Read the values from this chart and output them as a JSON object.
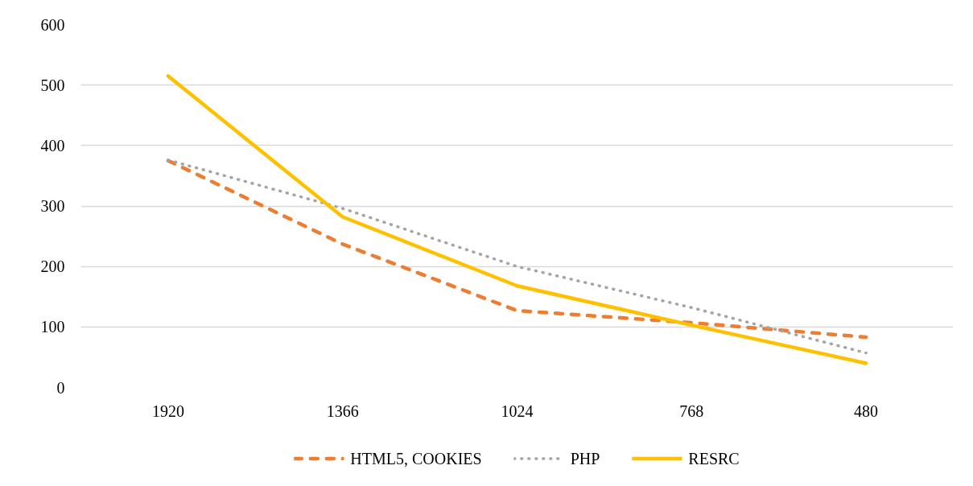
{
  "chart_data": {
    "type": "line",
    "categories": [
      "1920",
      "1366",
      "1024",
      "768",
      "480"
    ],
    "series": [
      {
        "name": "HTML5, COOKIES",
        "color": "#ed7d31",
        "line_style": "dashed",
        "values": [
          375,
          237,
          127,
          107,
          83
        ]
      },
      {
        "name": "PHP",
        "color": "#a5a5a5",
        "line_style": "dotted",
        "values": [
          376,
          296,
          200,
          132,
          57
        ]
      },
      {
        "name": "RESRC",
        "color": "#ffc000",
        "line_style": "solid",
        "values": [
          515,
          282,
          168,
          103,
          40
        ]
      }
    ],
    "ylim": [
      0,
      600
    ],
    "yticks": [
      0,
      100,
      200,
      300,
      400,
      500,
      600
    ],
    "grid": "y",
    "legend": "bottom"
  }
}
